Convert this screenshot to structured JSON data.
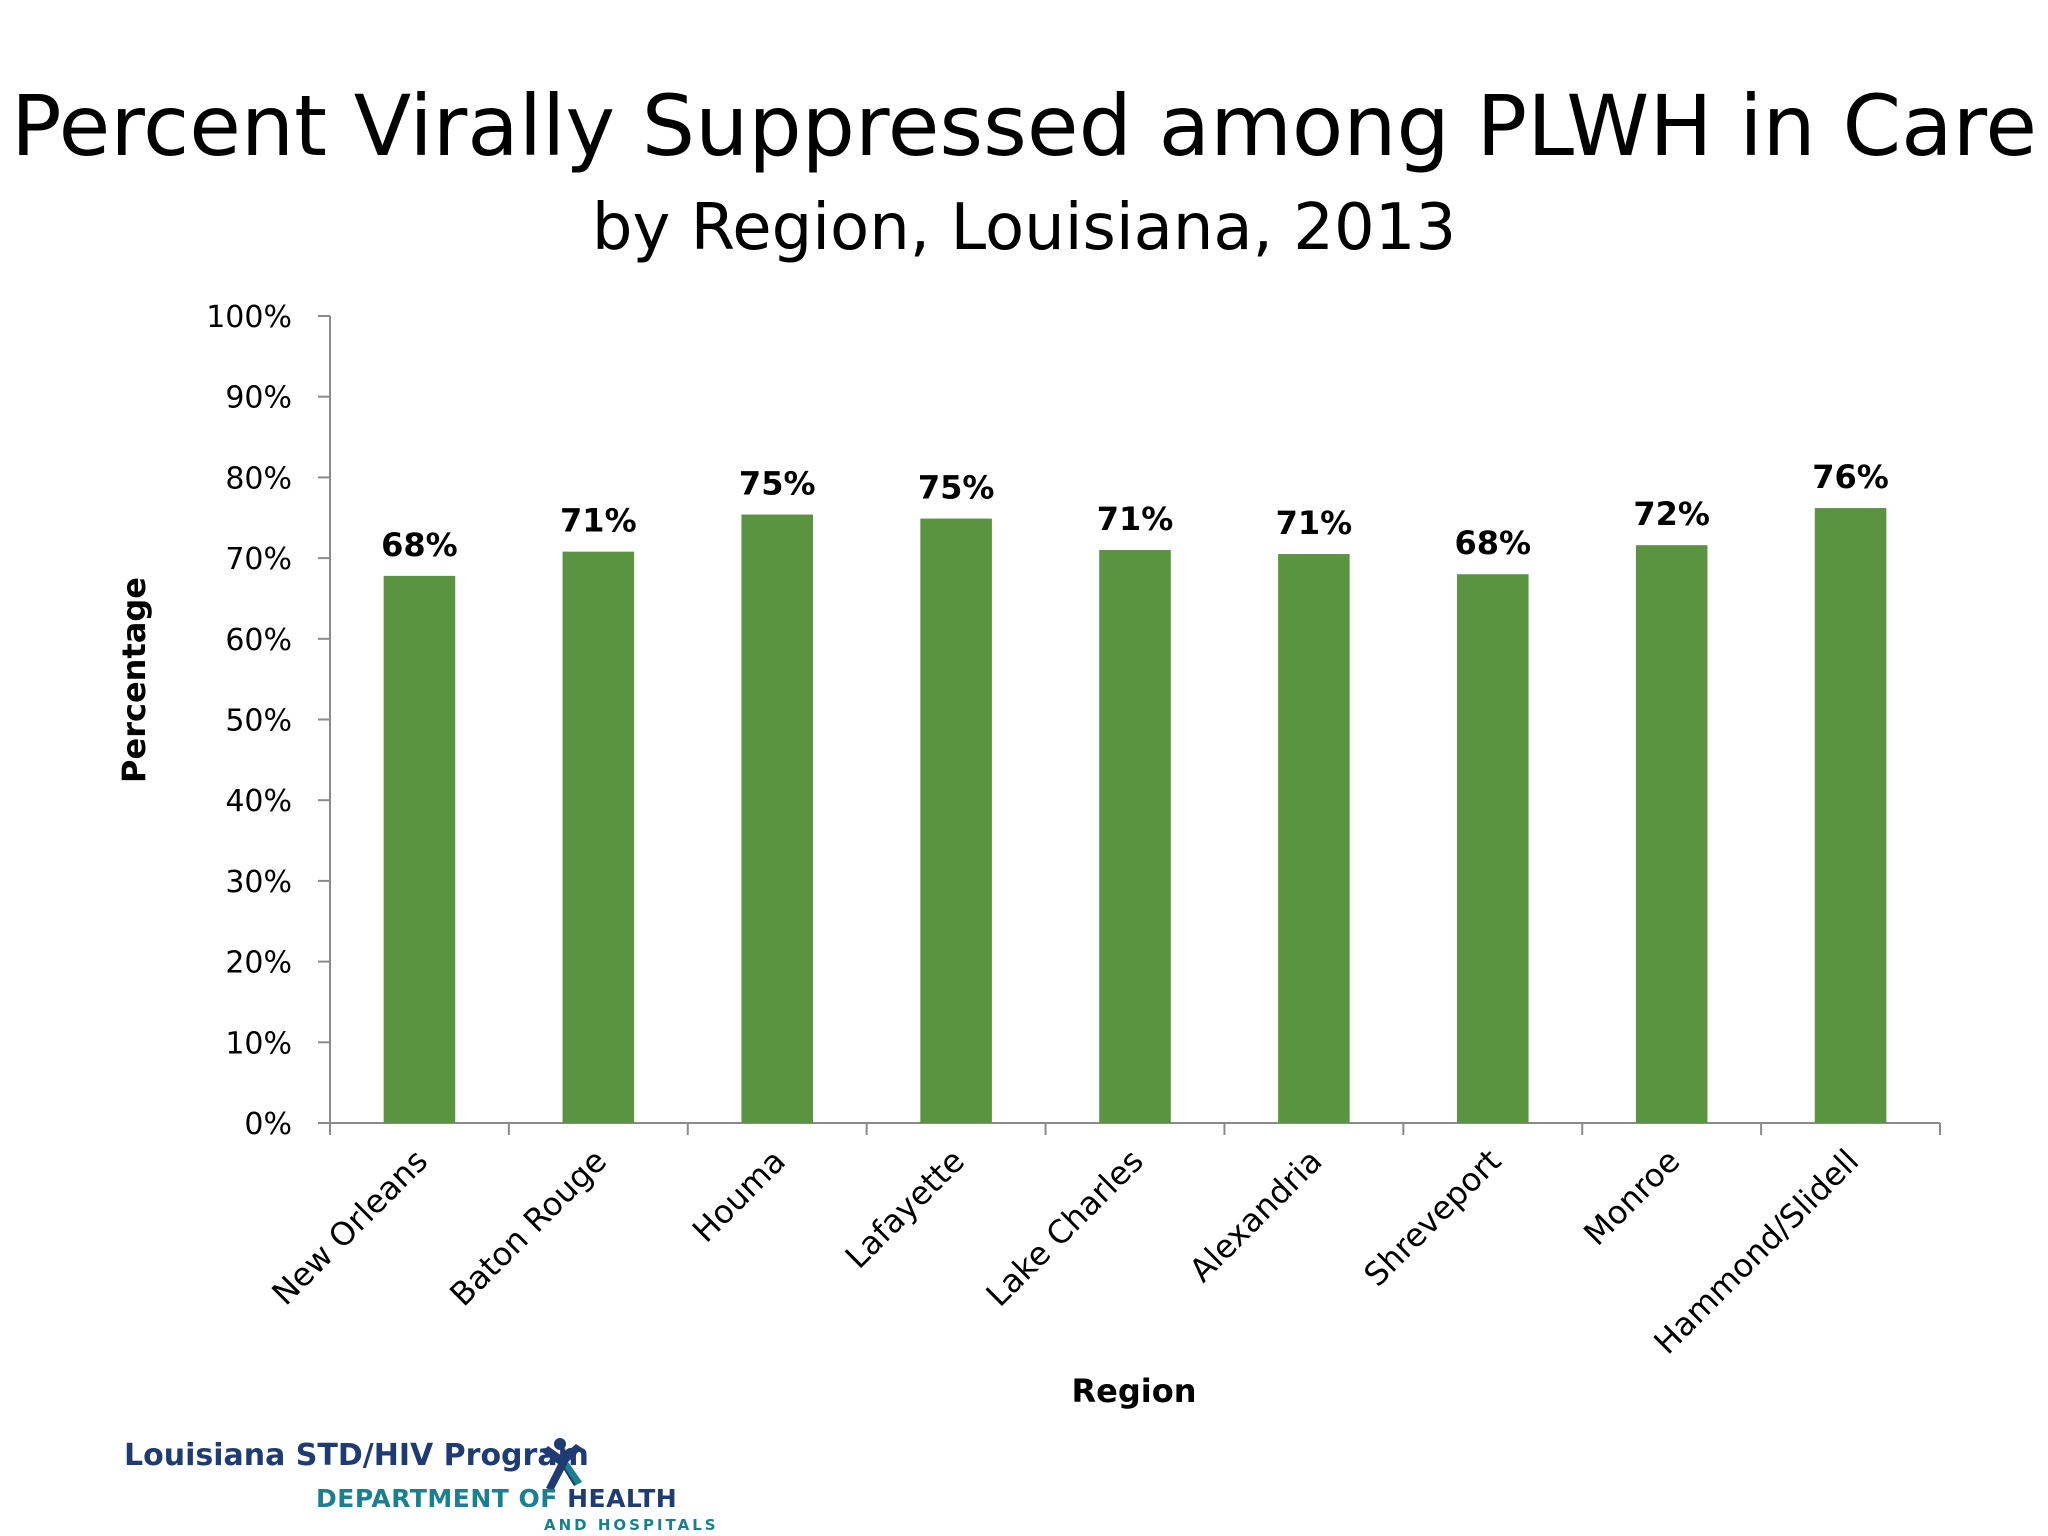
{
  "chart_data": {
    "type": "bar",
    "title": "Percent Virally Suppressed among PLWH in Care",
    "subtitle": "by Region, Louisiana, 2013",
    "xlabel": "Region",
    "ylabel": "Percentage",
    "ylim": [
      0,
      100
    ],
    "yticks": [
      "0%",
      "10%",
      "20%",
      "30%",
      "40%",
      "50%",
      "60%",
      "70%",
      "80%",
      "90%",
      "100%"
    ],
    "categories": [
      "New Orleans",
      "Baton Rouge",
      "Houma",
      "Lafayette",
      "Lake Charles",
      "Alexandria",
      "Shreveport",
      "Monroe",
      "Hammond/Slidell"
    ],
    "values": [
      67.8,
      70.8,
      75.4,
      74.9,
      71.0,
      70.5,
      68.0,
      71.6,
      76.2
    ],
    "data_labels": [
      "68%",
      "71%",
      "75%",
      "75%",
      "71%",
      "71%",
      "68%",
      "72%",
      "76%"
    ],
    "bar_color": "#5a9440",
    "grid": false,
    "legend": "none"
  },
  "footer": {
    "program": "Louisiana STD/HIV Program",
    "dept_prefix": "DEPARTMENT OF ",
    "dept_health": "HEALTH",
    "dept_sub": "AND HOSPITALS",
    "logo_icon": "person-figure-icon",
    "colors": {
      "navy": "#1f3b73",
      "teal": "#1a7f8f"
    }
  }
}
